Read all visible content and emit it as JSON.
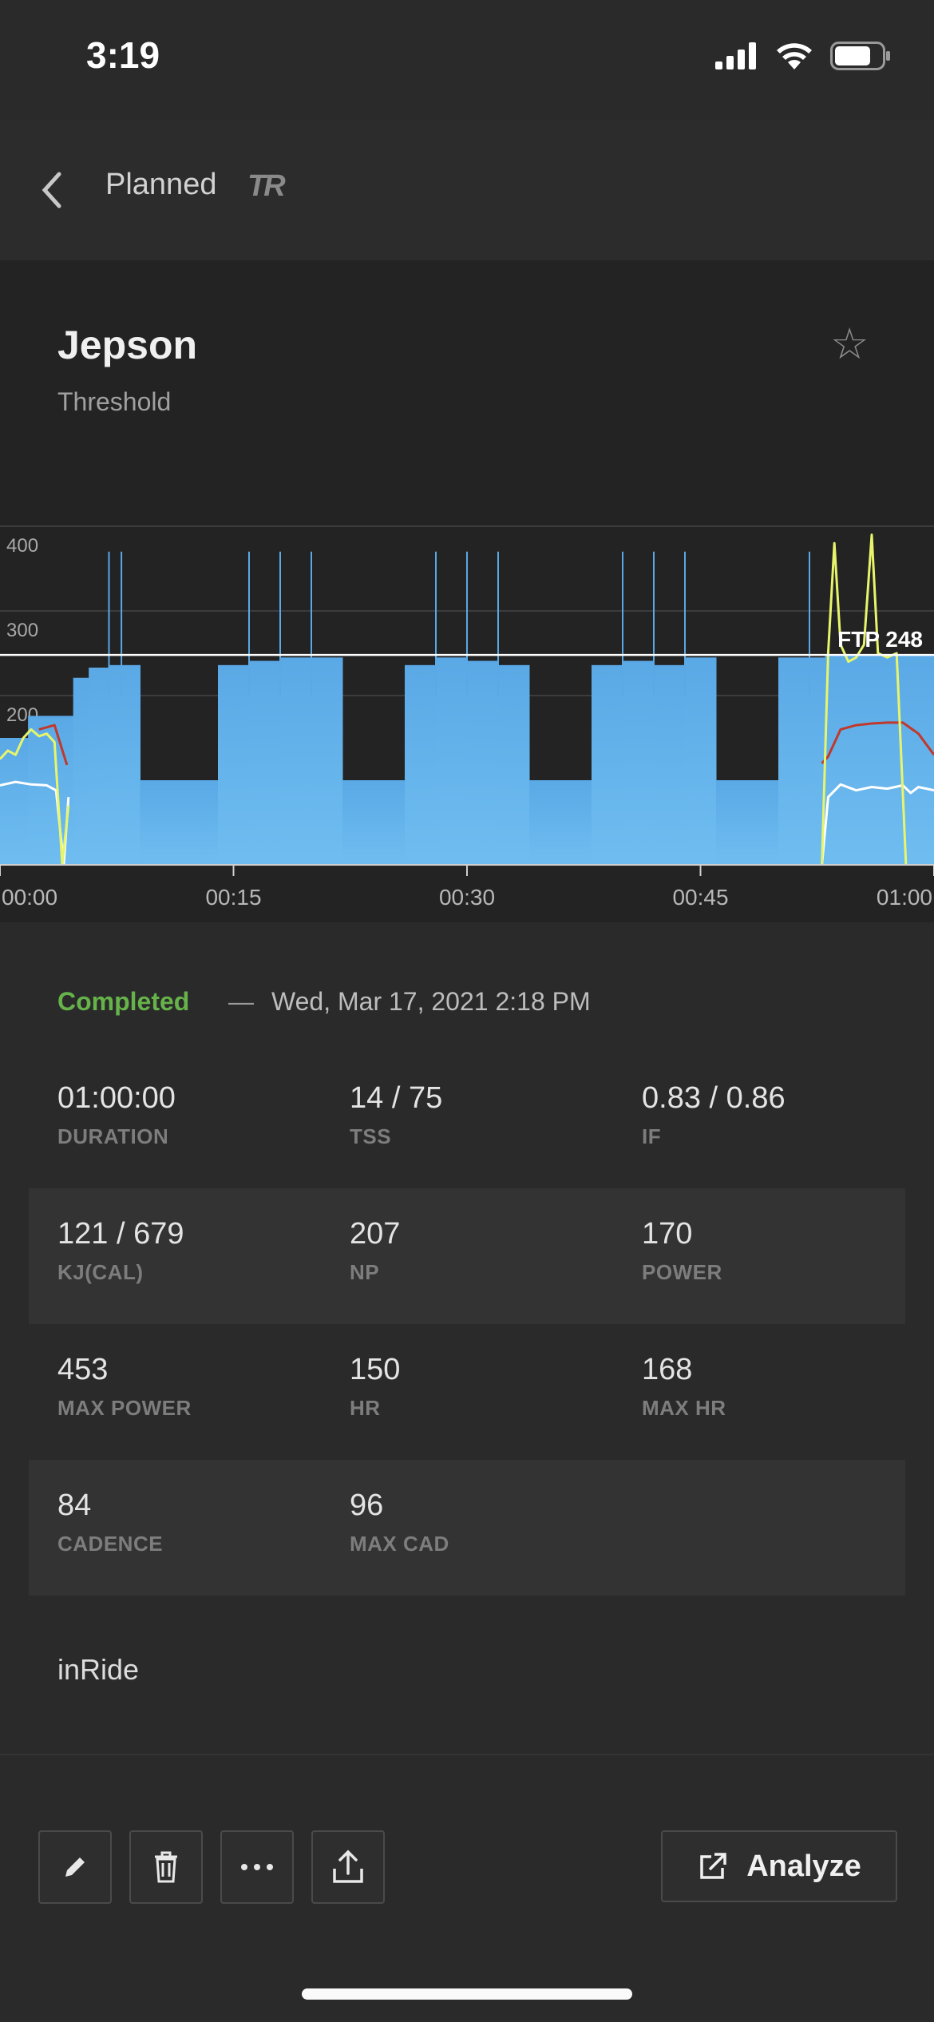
{
  "status_bar": {
    "time": "3:19"
  },
  "nav": {
    "back_icon": "chevron-left-icon",
    "title": "Planned",
    "logo_text": "TR"
  },
  "workout": {
    "name": "Jepson",
    "type": "Threshold",
    "favorite_icon": "star-outline-icon"
  },
  "chart_data": {
    "type": "area",
    "ylim": [
      0,
      400
    ],
    "y_ticks": [
      "400",
      "300",
      "200"
    ],
    "x_ticks": [
      "00:00",
      "00:15",
      "00:30",
      "00:45",
      "01:00"
    ],
    "ftp_label": "FTP 248",
    "ftp": 248,
    "colors": {
      "target": "#5aa9e6",
      "power": "#e8f56b",
      "heart_rate": "#c0392b",
      "cadence": "#ffffff",
      "ftp_line": "#ffffff"
    },
    "planned_power": [
      {
        "t0": 0.0,
        "t1": 1.8,
        "w": 150
      },
      {
        "t0": 1.8,
        "t1": 4.7,
        "w": 176
      },
      {
        "t0": 4.7,
        "t1": 5.7,
        "w": 221
      },
      {
        "t0": 5.7,
        "t1": 7.0,
        "w": 233
      },
      {
        "t0": 7.0,
        "t1": 9.0,
        "w": 236
      },
      {
        "t0": 9.0,
        "t1": 14.0,
        "w": 100
      },
      {
        "t0": 14.0,
        "t1": 16.0,
        "w": 236
      },
      {
        "t0": 16.0,
        "t1": 18.0,
        "w": 241
      },
      {
        "t0": 18.0,
        "t1": 22.0,
        "w": 245
      },
      {
        "t0": 22.0,
        "t1": 26.0,
        "w": 100
      },
      {
        "t0": 26.0,
        "t1": 28.0,
        "w": 236
      },
      {
        "t0": 28.0,
        "t1": 30.0,
        "w": 245
      },
      {
        "t0": 30.0,
        "t1": 32.0,
        "w": 241
      },
      {
        "t0": 32.0,
        "t1": 34.0,
        "w": 236
      },
      {
        "t0": 34.0,
        "t1": 38.0,
        "w": 100
      },
      {
        "t0": 38.0,
        "t1": 40.0,
        "w": 236
      },
      {
        "t0": 40.0,
        "t1": 42.0,
        "w": 241
      },
      {
        "t0": 42.0,
        "t1": 44.0,
        "w": 236
      },
      {
        "t0": 44.0,
        "t1": 46.0,
        "w": 245
      },
      {
        "t0": 46.0,
        "t1": 50.0,
        "w": 100
      },
      {
        "t0": 50.0,
        "t1": 53.0,
        "w": 245
      },
      {
        "t0": 53.0,
        "t1": 60.0,
        "w": 248
      }
    ],
    "spikes": [
      7.0,
      7.8,
      16.0,
      18.0,
      20.0,
      28.0,
      30.0,
      32.0,
      40.0,
      42.0,
      44.0,
      52.0
    ],
    "spike_power": 370,
    "power_series": [
      [
        0,
        125
      ],
      [
        0.5,
        135
      ],
      [
        1,
        130
      ],
      [
        1.5,
        150
      ],
      [
        2,
        160
      ],
      [
        2.5,
        152
      ],
      [
        3,
        155
      ],
      [
        3.5,
        145
      ],
      [
        4,
        0
      ],
      [
        4.4,
        70
      ],
      [
        52.8,
        0
      ],
      [
        53.2,
        250
      ],
      [
        53.6,
        380
      ],
      [
        54,
        260
      ],
      [
        54.5,
        240
      ],
      [
        55,
        245
      ],
      [
        55.5,
        260
      ],
      [
        56,
        390
      ],
      [
        56.4,
        250
      ],
      [
        57,
        245
      ],
      [
        57.6,
        250
      ],
      [
        58.2,
        0
      ]
    ],
    "hr_series": [
      [
        2.5,
        160
      ],
      [
        3.5,
        165
      ],
      [
        4.3,
        118
      ],
      [
        52.8,
        120
      ],
      [
        53.2,
        128
      ],
      [
        54,
        160
      ],
      [
        55,
        165
      ],
      [
        56,
        167
      ],
      [
        57,
        168
      ],
      [
        58,
        168
      ],
      [
        59,
        155
      ],
      [
        60,
        130
      ]
    ],
    "cadence_series": [
      [
        0,
        94
      ],
      [
        1,
        98
      ],
      [
        2,
        95
      ],
      [
        3,
        94
      ],
      [
        3.6,
        88
      ],
      [
        4.1,
        0
      ],
      [
        4.4,
        80
      ],
      [
        52.8,
        0
      ],
      [
        53.2,
        80
      ],
      [
        54,
        95
      ],
      [
        55,
        88
      ],
      [
        56,
        92
      ],
      [
        57,
        90
      ],
      [
        58,
        94
      ],
      [
        58.5,
        85
      ],
      [
        59,
        92
      ],
      [
        60,
        88
      ]
    ]
  },
  "completion": {
    "status": "Completed",
    "separator": "—",
    "date": "Wed, Mar 17, 2021 2:18 PM"
  },
  "stats": [
    [
      {
        "value": "01:00:00",
        "label": "DURATION"
      },
      {
        "value": "14 / 75",
        "label": "TSS"
      },
      {
        "value": "0.83 / 0.86",
        "label": "IF"
      }
    ],
    [
      {
        "value": "121 / 679",
        "label": "KJ(CAL)"
      },
      {
        "value": "207",
        "label": "NP"
      },
      {
        "value": "170",
        "label": "POWER"
      }
    ],
    [
      {
        "value": "453",
        "label": "MAX POWER"
      },
      {
        "value": "150",
        "label": "HR"
      },
      {
        "value": "168",
        "label": "MAX HR"
      }
    ],
    [
      {
        "value": "84",
        "label": "CADENCE"
      },
      {
        "value": "96",
        "label": "MAX CAD"
      },
      {
        "value": "",
        "label": ""
      }
    ]
  ],
  "source": "inRide",
  "toolbar": {
    "edit_icon": "pencil-icon",
    "delete_icon": "trash-icon",
    "more_icon": "more-horizontal-icon",
    "share_icon": "share-icon",
    "analyze_label": "Analyze",
    "analyze_icon": "external-link-icon"
  }
}
